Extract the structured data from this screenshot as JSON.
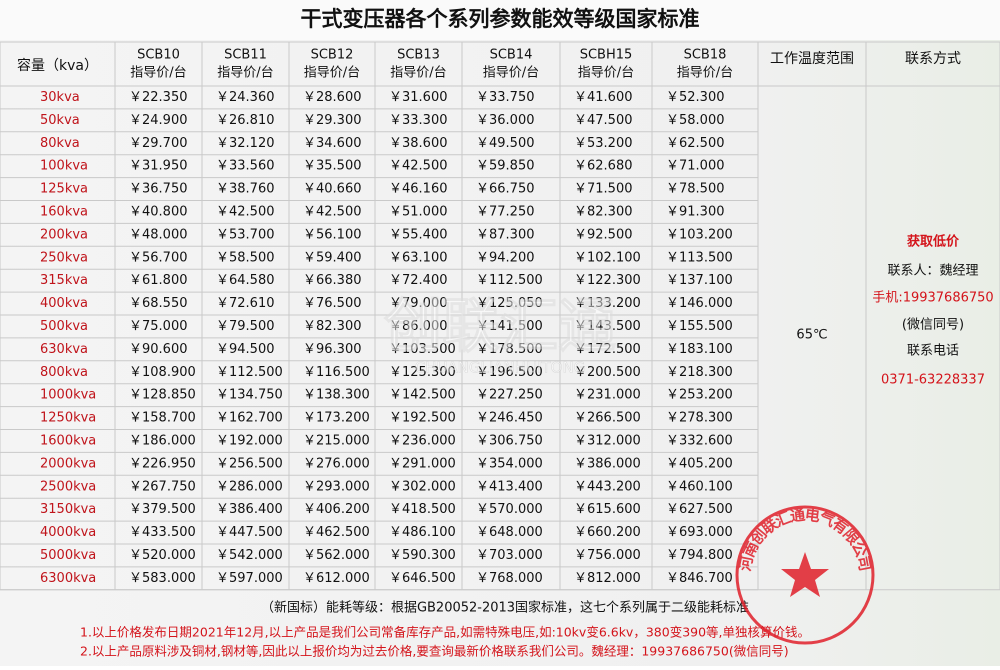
{
  "title": "干式变压器各个系列参数能效等级国家标准",
  "table": {
    "headers": [
      {
        "name": "容量（kva）"
      },
      {
        "name": "SCB10",
        "sub": "指导价/台"
      },
      {
        "name": "SCB11",
        "sub": "指导价/台"
      },
      {
        "name": "SCB12",
        "sub": "指导价/台"
      },
      {
        "name": "SCB13",
        "sub": "指导价/台"
      },
      {
        "name": "SCB14",
        "sub": "指导价/台"
      },
      {
        "name": "SCBH15",
        "sub": "指导价/台"
      },
      {
        "name": "SCB18",
        "sub": "指导价/台"
      },
      {
        "name": "工作温度范围"
      },
      {
        "name": "联系方式"
      }
    ],
    "rows": [
      [
        "30kva",
        "￥22.350",
        "￥24.360",
        "￥28.600",
        "￥31.600",
        "￥33.750",
        "￥41.600",
        "￥52.300"
      ],
      [
        "50kva",
        "￥24.900",
        "￥26.810",
        "￥29.300",
        "￥33.300",
        "￥36.000",
        "￥47.500",
        "￥58.000"
      ],
      [
        "80kva",
        "￥29.700",
        "￥32.120",
        "￥34.600",
        "￥38.600",
        "￥49.500",
        "￥53.200",
        "￥62.500"
      ],
      [
        "100kva",
        "￥31.950",
        "￥33.560",
        "￥35.500",
        "￥42.500",
        "￥59.850",
        "￥62.680",
        "￥71.000"
      ],
      [
        "125kva",
        "￥36.750",
        "￥38.760",
        "￥40.660",
        "￥46.160",
        "￥66.750",
        "￥71.500",
        "￥78.500"
      ],
      [
        "160kva",
        "￥40.800",
        "￥42.500",
        "￥42.500",
        "￥51.000",
        "￥77.250",
        "￥82.300",
        "￥91.300"
      ],
      [
        "200kva",
        "￥48.000",
        "￥53.700",
        "￥56.100",
        "￥55.400",
        "￥87.300",
        "￥92.500",
        "￥103.200"
      ],
      [
        "250kva",
        "￥56.700",
        "￥58.500",
        "￥59.400",
        "￥63.100",
        "￥94.200",
        "￥102.100",
        "￥113.500"
      ],
      [
        "315kva",
        "￥61.800",
        "￥64.580",
        "￥66.380",
        "￥72.400",
        "￥112.500",
        "￥122.300",
        "￥137.100"
      ],
      [
        "400kva",
        "￥68.550",
        "￥72.610",
        "￥76.500",
        "￥79.000",
        "￥125.050",
        "￥133.200",
        "￥146.000"
      ],
      [
        "500kva",
        "￥75.000",
        "￥79.500",
        "￥82.300",
        "￥86.000",
        "￥141.500",
        "￥143.500",
        "￥155.500"
      ],
      [
        "630kva",
        "￥90.600",
        "￥94.500",
        "￥96.300",
        "￥103.500",
        "￥178.500",
        "￥172.500",
        "￥183.100"
      ],
      [
        "800kva",
        "￥108.900",
        "￥112.500",
        "￥116.500",
        "￥125.300",
        "￥196.500",
        "￥200.500",
        "￥218.300"
      ],
      [
        "1000kva",
        "￥128.850",
        "￥134.750",
        "￥138.300",
        "￥142.500",
        "￥227.250",
        "￥231.000",
        "￥253.200"
      ],
      [
        "1250kva",
        "￥158.700",
        "￥162.700",
        "￥173.200",
        "￥192.500",
        "￥246.450",
        "￥266.500",
        "￥278.300"
      ],
      [
        "1600kva",
        "￥186.000",
        "￥192.000",
        "￥215.000",
        "￥236.000",
        "￥306.750",
        "￥312.000",
        "￥332.600"
      ],
      [
        "2000kva",
        "￥226.950",
        "￥256.500",
        "￥276.000",
        "￥291.000",
        "￥354.000",
        "￥386.000",
        "￥405.200"
      ],
      [
        "2500kva",
        "￥267.750",
        "￥286.000",
        "￥293.000",
        "￥302.000",
        "￥413.400",
        "￥443.200",
        "￥460.100"
      ],
      [
        "3150kva",
        "￥379.500",
        "￥386.400",
        "￥406.200",
        "￥418.500",
        "￥570.000",
        "￥615.600",
        "￥627.500"
      ],
      [
        "4000kva",
        "￥433.500",
        "￥447.500",
        "￥462.500",
        "￥486.100",
        "￥648.000",
        "￥660.200",
        "￥693.000"
      ],
      [
        "5000kva",
        "￥520.000",
        "￥542.000",
        "￥562.000",
        "￥590.300",
        "￥703.000",
        "￥756.000",
        "￥794.800"
      ],
      [
        "6300kva",
        "￥583.000",
        "￥597.000",
        "￥612.000",
        "￥646.500",
        "￥768.000",
        "￥812.000",
        "￥846.700"
      ]
    ],
    "temperature": "65℃",
    "contact": [
      "获取低价",
      "联系人：魏经理",
      "手机:19937686750",
      "(微信同号)",
      "联系电话",
      "0371-63228337"
    ]
  },
  "footer": {
    "standard": "（新国标）能耗等级：根据GB20052-2013国家标准，这七个系列属于二级能耗标准",
    "notes": [
      "1.以上价格发布日期2021年12月,以上产品是我们公司常备库存产品,如需特殊电压,如:10kv变6.6kv，380变390等,单独核算价钱。",
      "2.以上产品原料涉及铜材,钢材等,因此以上报价均为过去价格,要查询最新价格联系我们公司。魏经理：19937686750(微信同号)"
    ]
  },
  "watermark": {
    "text": "创联汇通",
    "latin": "CHUANGLIANHUITONG"
  },
  "stamp": "河南创联汇通电气有限公司"
}
